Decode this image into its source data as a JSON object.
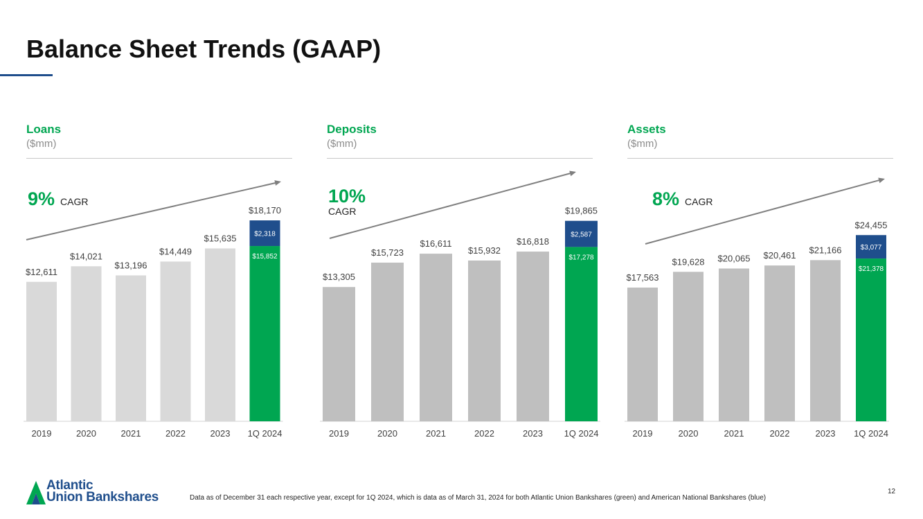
{
  "title": "Balance Sheet Trends (GAAP)",
  "colors": {
    "accent_green": "#00a651",
    "blue": "#1f4e8c",
    "bar_light": "#d9d9d9",
    "bar_gray": "#bfbfbf",
    "arrow": "#7f7f7f"
  },
  "footer": {
    "logo_line1": "Atlantic",
    "logo_line2": "Union Bankshares",
    "logo_icon": "atlantic-union-logo-icon",
    "footnote": "Data as of December 31 each respective year, except for 1Q 2024, which is data as of March 31, 2024 for both Atlantic Union Bankshares (green) and American National Bankshares (blue)",
    "page_number": "12"
  },
  "chart_data": [
    {
      "type": "bar",
      "title": "Loans",
      "unit": "($mm)",
      "cagr_value": "9%",
      "cagr_label": "CAGR",
      "categories": [
        "2019",
        "2020",
        "2021",
        "2022",
        "2023",
        "1Q 2024"
      ],
      "values": [
        12611,
        14021,
        13196,
        14449,
        15635,
        18170
      ],
      "labels": [
        "$12,611",
        "$14,021",
        "$13,196",
        "$14,449",
        "$15,635",
        "$18,170"
      ],
      "stack": {
        "green": 15852,
        "blue": 2318,
        "green_label": "$15,852",
        "blue_label": "$2,318"
      },
      "ylim": [
        0,
        18800
      ],
      "bar_color": "#d9d9d9"
    },
    {
      "type": "bar",
      "title": "Deposits",
      "unit": "($mm)",
      "cagr_value": "10%",
      "cagr_label": "CAGR",
      "categories": [
        "2019",
        "2020",
        "2021",
        "2022",
        "2023",
        "1Q 2024"
      ],
      "values": [
        13305,
        15723,
        16611,
        15932,
        16818,
        19865
      ],
      "labels": [
        "$13,305",
        "$15,723",
        "$16,611",
        "$15,932",
        "$16,818",
        "$19,865"
      ],
      "stack": {
        "green": 17278,
        "blue": 2587,
        "green_label": "$17,278",
        "blue_label": "$2,587"
      },
      "ylim": [
        0,
        20600
      ],
      "bar_color": "#bfbfbf"
    },
    {
      "type": "bar",
      "title": "Assets",
      "unit": "($mm)",
      "cagr_value": "8%",
      "cagr_label": "CAGR",
      "categories": [
        "2019",
        "2020",
        "2021",
        "2022",
        "2023",
        "1Q 2024"
      ],
      "values": [
        17563,
        19628,
        20065,
        20461,
        21166,
        24455
      ],
      "labels": [
        "$17,563",
        "$19,628",
        "$20,065",
        "$20,461",
        "$21,166",
        "$24,455"
      ],
      "stack": {
        "green": 21378,
        "blue": 3077,
        "green_label": "$21,378",
        "blue_label": "$3,077"
      },
      "ylim": [
        0,
        27300
      ],
      "bar_color": "#bfbfbf"
    }
  ]
}
